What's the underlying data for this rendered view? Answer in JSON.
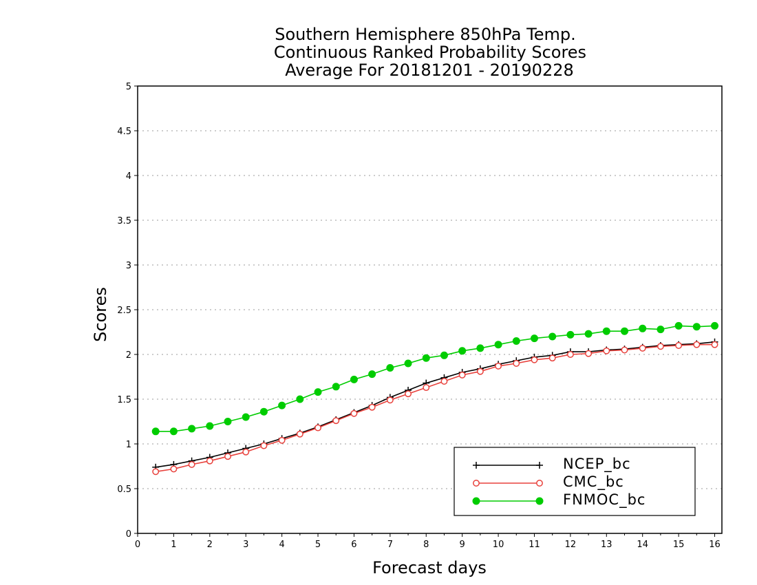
{
  "chart_data": {
    "type": "line",
    "title": [
      "Southern Hemisphere 850hPa Temp.",
      "Continuous Ranked Probability Scores",
      "Average For 20181201 - 20190228"
    ],
    "xlabel": "Forecast days",
    "ylabel": "Scores",
    "xlim": [
      0,
      16.2
    ],
    "ylim": [
      0,
      5
    ],
    "xticks": [
      "0",
      "1",
      "2",
      "3",
      "4",
      "5",
      "6",
      "7",
      "8",
      "9",
      "10",
      "11",
      "12",
      "13",
      "14",
      "15",
      "16"
    ],
    "yticks": [
      "0",
      "0.5",
      "1",
      "1.5",
      "2",
      "2.5",
      "3",
      "3.5",
      "4",
      "4.5",
      "5"
    ],
    "ygrid": true,
    "legend_position": "bottom-right",
    "x": [
      0.5,
      1,
      1.5,
      2,
      2.5,
      3,
      3.5,
      4,
      4.5,
      5,
      5.5,
      6,
      6.5,
      7,
      7.5,
      8,
      8.5,
      9,
      9.5,
      10,
      10.5,
      11,
      11.5,
      12,
      12.5,
      13,
      13.5,
      14,
      14.5,
      15,
      15.5,
      16
    ],
    "series": [
      {
        "name": "NCEP_bc",
        "color": "#000000",
        "marker": "plus",
        "values": [
          0.74,
          0.77,
          0.81,
          0.85,
          0.9,
          0.95,
          1.0,
          1.06,
          1.12,
          1.19,
          1.27,
          1.35,
          1.43,
          1.52,
          1.6,
          1.68,
          1.74,
          1.8,
          1.84,
          1.89,
          1.93,
          1.97,
          1.99,
          2.03,
          2.03,
          2.05,
          2.06,
          2.08,
          2.1,
          2.11,
          2.12,
          2.14
        ]
      },
      {
        "name": "CMC_bc",
        "color": "#e8413c",
        "marker": "open-circle",
        "values": [
          0.69,
          0.72,
          0.77,
          0.81,
          0.86,
          0.91,
          0.98,
          1.04,
          1.11,
          1.18,
          1.26,
          1.34,
          1.41,
          1.49,
          1.56,
          1.63,
          1.7,
          1.77,
          1.81,
          1.87,
          1.9,
          1.94,
          1.96,
          2.0,
          2.01,
          2.04,
          2.05,
          2.07,
          2.09,
          2.1,
          2.11,
          2.11
        ]
      },
      {
        "name": "FNMOC_bc",
        "color": "#00cc00",
        "marker": "filled-circle",
        "values": [
          1.14,
          1.14,
          1.17,
          1.2,
          1.25,
          1.3,
          1.36,
          1.43,
          1.5,
          1.58,
          1.64,
          1.72,
          1.78,
          1.85,
          1.9,
          1.96,
          1.99,
          2.04,
          2.07,
          2.11,
          2.15,
          2.18,
          2.2,
          2.22,
          2.23,
          2.26,
          2.26,
          2.29,
          2.28,
          2.32,
          2.31,
          2.32
        ]
      }
    ]
  }
}
